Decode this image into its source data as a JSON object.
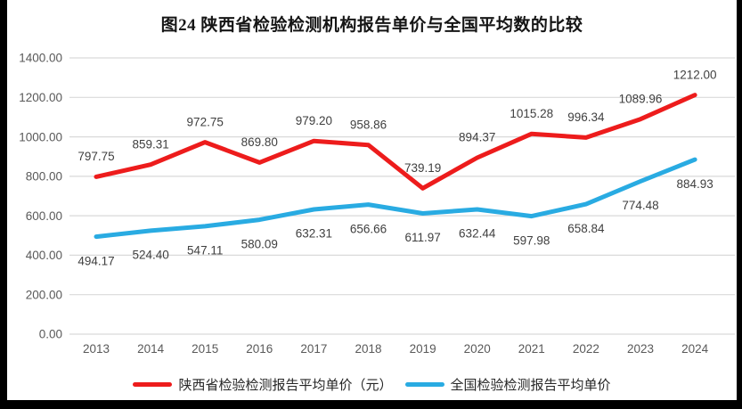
{
  "chart_data": {
    "type": "line",
    "title": "图24 陕西省检验检测机构报告单价与全国平均数的比较",
    "xlabel": "",
    "ylabel": "",
    "categories": [
      "2013",
      "2014",
      "2015",
      "2016",
      "2017",
      "2018",
      "2019",
      "2020",
      "2021",
      "2022",
      "2023",
      "2024"
    ],
    "series": [
      {
        "name": "陕西省检验检测报告平均单价（元）",
        "color": "#ed1c1c",
        "values": [
          797.75,
          859.31,
          972.75,
          869.8,
          979.2,
          958.86,
          739.19,
          894.37,
          1015.28,
          996.34,
          1089.96,
          1212.0
        ],
        "label_offset": -23
      },
      {
        "name": "全国检验检测报告平均单价",
        "color": "#29abe2",
        "values": [
          494.17,
          524.4,
          547.11,
          580.09,
          632.31,
          656.66,
          611.97,
          632.44,
          597.98,
          658.84,
          774.48,
          884.93
        ],
        "label_offset": 27
      }
    ],
    "ylim": [
      0,
      1400
    ],
    "ytick_labels": [
      "0.00",
      "200.00",
      "400.00",
      "600.00",
      "800.00",
      "1000.00",
      "1200.00",
      "1400.00"
    ],
    "grid": true,
    "gridline_color": "#d9d9d9",
    "legend_position": "bottom",
    "value_decimals": 2
  }
}
